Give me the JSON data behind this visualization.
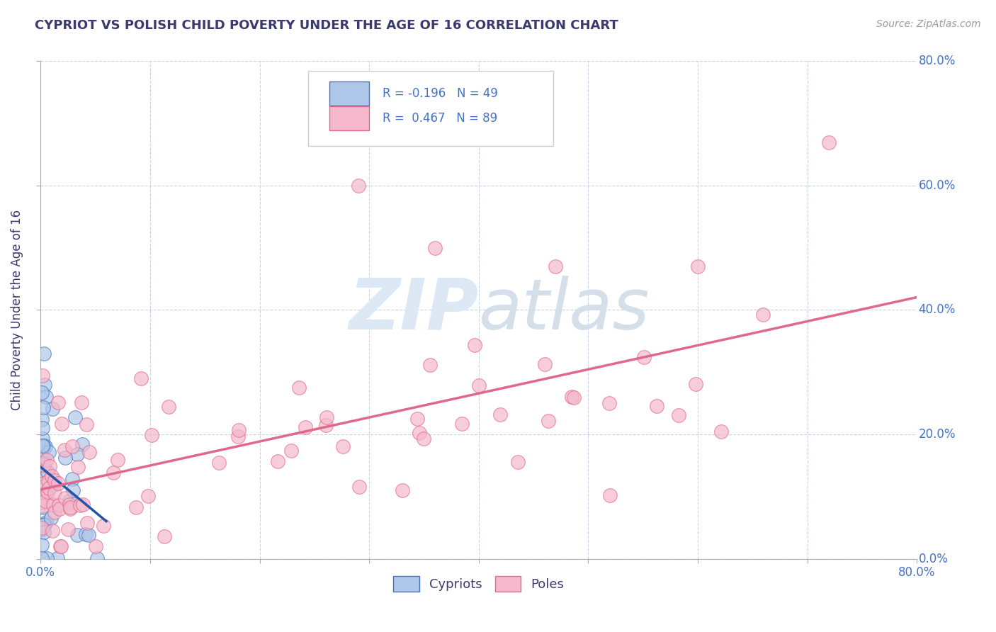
{
  "title": "CYPRIOT VS POLISH CHILD POVERTY UNDER THE AGE OF 16 CORRELATION CHART",
  "source_text": "Source: ZipAtlas.com",
  "ylabel": "Child Poverty Under the Age of 16",
  "xlim": [
    0.0,
    0.8
  ],
  "ylim": [
    0.0,
    0.8
  ],
  "xticks": [
    0.0,
    0.1,
    0.2,
    0.3,
    0.4,
    0.5,
    0.6,
    0.7,
    0.8
  ],
  "yticks": [
    0.0,
    0.2,
    0.4,
    0.6,
    0.8
  ],
  "title_color": "#3a3a6e",
  "axis_label_color": "#4472c4",
  "watermark_color": "#dde8f5",
  "background_color": "#ffffff",
  "grid_color": "#c8d4e8",
  "cypriot_face_color": "#aec6e8",
  "cypriot_edge_color": "#4472c4",
  "pole_face_color": "#f5b8cc",
  "pole_edge_color": "#e06888",
  "pole_line_color": "#e06888",
  "cypriot_line_color": "#2255aa",
  "cypriot_R": -0.196,
  "cypriot_N": 49,
  "pole_R": 0.467,
  "pole_N": 89,
  "legend_R1": "R = -0.196",
  "legend_N1": "N = 49",
  "legend_R2": "R =  0.467",
  "legend_N2": "N = 89"
}
